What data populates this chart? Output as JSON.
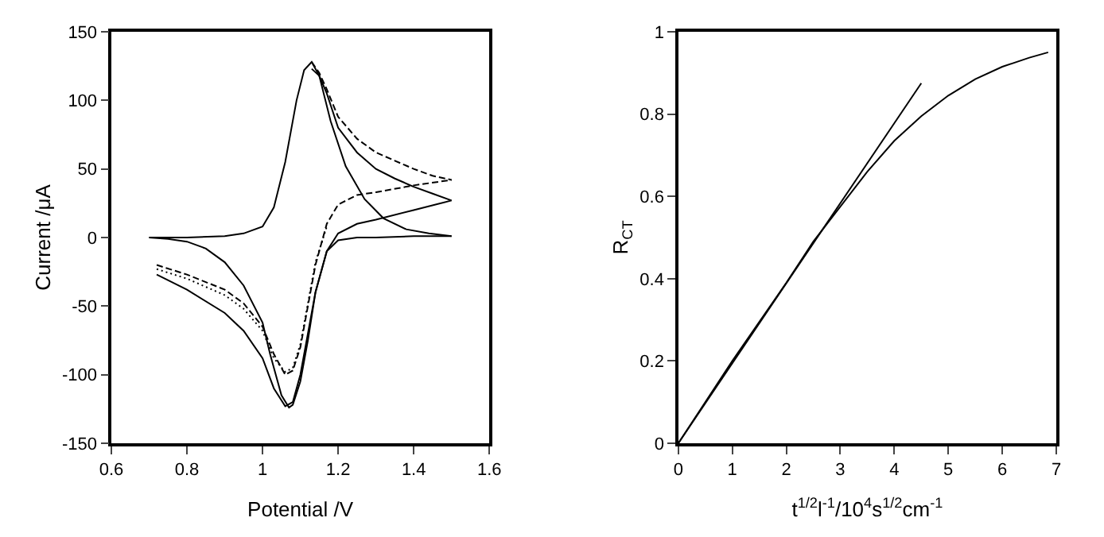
{
  "chart_data": [
    {
      "type": "line",
      "xlabel": "Potential /V",
      "ylabel": "Current /μA",
      "xlim": [
        0.6,
        1.6
      ],
      "xticks": [
        0.6,
        0.8,
        {
          "value": 1,
          "label": "1"
        },
        1.2,
        1.4,
        1.6
      ],
      "ylim": [
        -150,
        150
      ],
      "yticks": [
        -150,
        -100,
        -50,
        0,
        50,
        100,
        150
      ],
      "marker": "none",
      "series": [
        {
          "color": "#000000",
          "line_style": "solid",
          "x": [
            0.7,
            0.8,
            0.9,
            0.95,
            1.0,
            1.03,
            1.06,
            1.09,
            1.11,
            1.13,
            1.15,
            1.18,
            1.22,
            1.27,
            1.32,
            1.38,
            1.44,
            1.5
          ],
          "values": [
            0,
            0,
            1,
            3,
            8,
            22,
            55,
            100,
            122,
            128,
            118,
            85,
            52,
            28,
            14,
            6,
            3,
            1
          ]
        },
        {
          "color": "#000000",
          "line_style": "solid",
          "x": [
            0.7,
            0.75,
            0.8,
            0.85,
            0.9,
            0.95,
            1.0,
            1.02,
            1.05,
            1.07,
            1.08,
            1.1,
            1.12,
            1.14,
            1.17,
            1.2,
            1.25,
            1.3,
            1.4,
            1.5
          ],
          "values": [
            0,
            -1,
            -3,
            -8,
            -18,
            -35,
            -62,
            -85,
            -115,
            -124,
            -122,
            -105,
            -75,
            -40,
            -10,
            -2,
            0,
            0,
            1,
            1
          ]
        },
        {
          "color": "#000000",
          "line_style": "solid",
          "x": [
            0.72,
            0.8,
            0.9,
            0.95,
            1.0,
            1.03,
            1.06,
            1.08,
            1.1,
            1.12,
            1.14,
            1.17,
            1.2,
            1.25,
            1.3,
            1.4,
            1.5
          ],
          "values": [
            -27,
            -38,
            -55,
            -68,
            -88,
            -110,
            -123,
            -120,
            -100,
            -70,
            -40,
            -10,
            3,
            10,
            13,
            20,
            27
          ]
        },
        {
          "color": "#000000",
          "line_style": "solid",
          "x": [
            1.13,
            1.15,
            1.17,
            1.2,
            1.25,
            1.3,
            1.35,
            1.4,
            1.45,
            1.5
          ],
          "values": [
            123,
            118,
            105,
            80,
            62,
            50,
            43,
            37,
            32,
            27
          ]
        },
        {
          "color": "#000000",
          "line_style": "dashed",
          "x": [
            0.72,
            0.8,
            0.9,
            0.95,
            1.0,
            1.03,
            1.06,
            1.08,
            1.1,
            1.12,
            1.14,
            1.17,
            1.2,
            1.25,
            1.3,
            1.4,
            1.5
          ],
          "values": [
            -20,
            -27,
            -38,
            -48,
            -65,
            -85,
            -100,
            -97,
            -80,
            -50,
            -20,
            10,
            24,
            31,
            33,
            38,
            42
          ]
        },
        {
          "color": "#000000",
          "line_style": "dashed",
          "x": [
            1.13,
            1.15,
            1.17,
            1.2,
            1.25,
            1.3,
            1.35,
            1.4,
            1.45,
            1.5
          ],
          "values": [
            128,
            120,
            108,
            88,
            72,
            62,
            56,
            50,
            45,
            42
          ]
        },
        {
          "color": "#000000",
          "line_style": "dotted",
          "x": [
            0.72,
            0.8,
            0.9,
            0.95,
            1.0,
            1.03,
            1.06,
            1.08,
            1.1,
            1.12,
            1.14,
            1.17
          ],
          "values": [
            -23,
            -30,
            -42,
            -52,
            -68,
            -88,
            -98,
            -95,
            -78,
            -48,
            -18,
            8
          ]
        }
      ]
    },
    {
      "type": "line",
      "xlabel": "t$^{1/2}$l$^{-1}$/10$^{4}$s$^{1/2}$cm$^{-1}$",
      "ylabel": "R$_{CT}$",
      "xlim": [
        0,
        7
      ],
      "xticks": [
        0,
        1,
        2,
        3,
        4,
        5,
        6,
        7
      ],
      "ylim": [
        0,
        1
      ],
      "yticks": [
        0,
        0.2,
        0.4,
        0.6,
        0.8,
        {
          "value": 1,
          "label": "1"
        }
      ],
      "marker": "none",
      "series": [
        {
          "color": "#000000",
          "line_style": "solid",
          "x": [
            0,
            4.5
          ],
          "values": [
            0,
            0.875
          ]
        },
        {
          "color": "#000000",
          "line_style": "solid",
          "x": [
            0,
            1,
            2,
            2.5,
            3,
            3.5,
            4,
            4.5,
            5,
            5.5,
            6,
            6.5,
            6.85
          ],
          "values": [
            0,
            0.2,
            0.39,
            0.49,
            0.575,
            0.66,
            0.735,
            0.795,
            0.845,
            0.885,
            0.915,
            0.937,
            0.95
          ]
        }
      ]
    }
  ]
}
